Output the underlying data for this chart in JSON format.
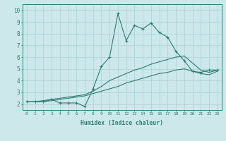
{
  "xlabel": "Humidex (Indice chaleur)",
  "xlim": [
    -0.5,
    23.5
  ],
  "ylim": [
    1.5,
    10.5
  ],
  "xticks": [
    0,
    1,
    2,
    3,
    4,
    5,
    6,
    7,
    8,
    9,
    10,
    11,
    12,
    13,
    14,
    15,
    16,
    17,
    18,
    19,
    20,
    21,
    22,
    23
  ],
  "yticks": [
    2,
    3,
    4,
    5,
    6,
    7,
    8,
    9,
    10
  ],
  "bg_color": "#cce8eb",
  "line_color": "#2e7d72",
  "grid_color": "#b0d4d8",
  "series1_x": [
    0,
    1,
    2,
    3,
    4,
    5,
    6,
    7,
    8,
    9,
    10,
    11,
    12,
    13,
    14,
    15,
    16,
    17,
    18,
    19,
    20,
    21,
    22,
    23
  ],
  "series1_y": [
    2.2,
    2.2,
    2.2,
    2.4,
    2.1,
    2.1,
    2.1,
    1.8,
    3.3,
    5.2,
    6.0,
    9.7,
    7.4,
    8.7,
    8.4,
    8.9,
    8.1,
    7.7,
    6.5,
    5.7,
    4.8,
    4.7,
    4.9,
    4.9
  ],
  "series2_x": [
    0,
    1,
    2,
    3,
    4,
    5,
    6,
    7,
    8,
    9,
    10,
    11,
    12,
    13,
    14,
    15,
    16,
    17,
    18,
    19,
    20,
    21,
    22,
    23
  ],
  "series2_y": [
    2.2,
    2.2,
    2.3,
    2.4,
    2.5,
    2.6,
    2.7,
    2.8,
    3.1,
    3.5,
    4.0,
    4.3,
    4.6,
    4.9,
    5.1,
    5.4,
    5.6,
    5.8,
    6.0,
    6.1,
    5.5,
    4.9,
    4.7,
    4.9
  ],
  "series3_x": [
    0,
    1,
    2,
    3,
    4,
    5,
    6,
    7,
    8,
    9,
    10,
    11,
    12,
    13,
    14,
    15,
    16,
    17,
    18,
    19,
    20,
    21,
    22,
    23
  ],
  "series3_y": [
    2.2,
    2.2,
    2.2,
    2.3,
    2.4,
    2.5,
    2.6,
    2.7,
    2.9,
    3.1,
    3.3,
    3.5,
    3.8,
    4.0,
    4.2,
    4.4,
    4.6,
    4.7,
    4.9,
    5.0,
    4.8,
    4.6,
    4.5,
    4.8
  ]
}
